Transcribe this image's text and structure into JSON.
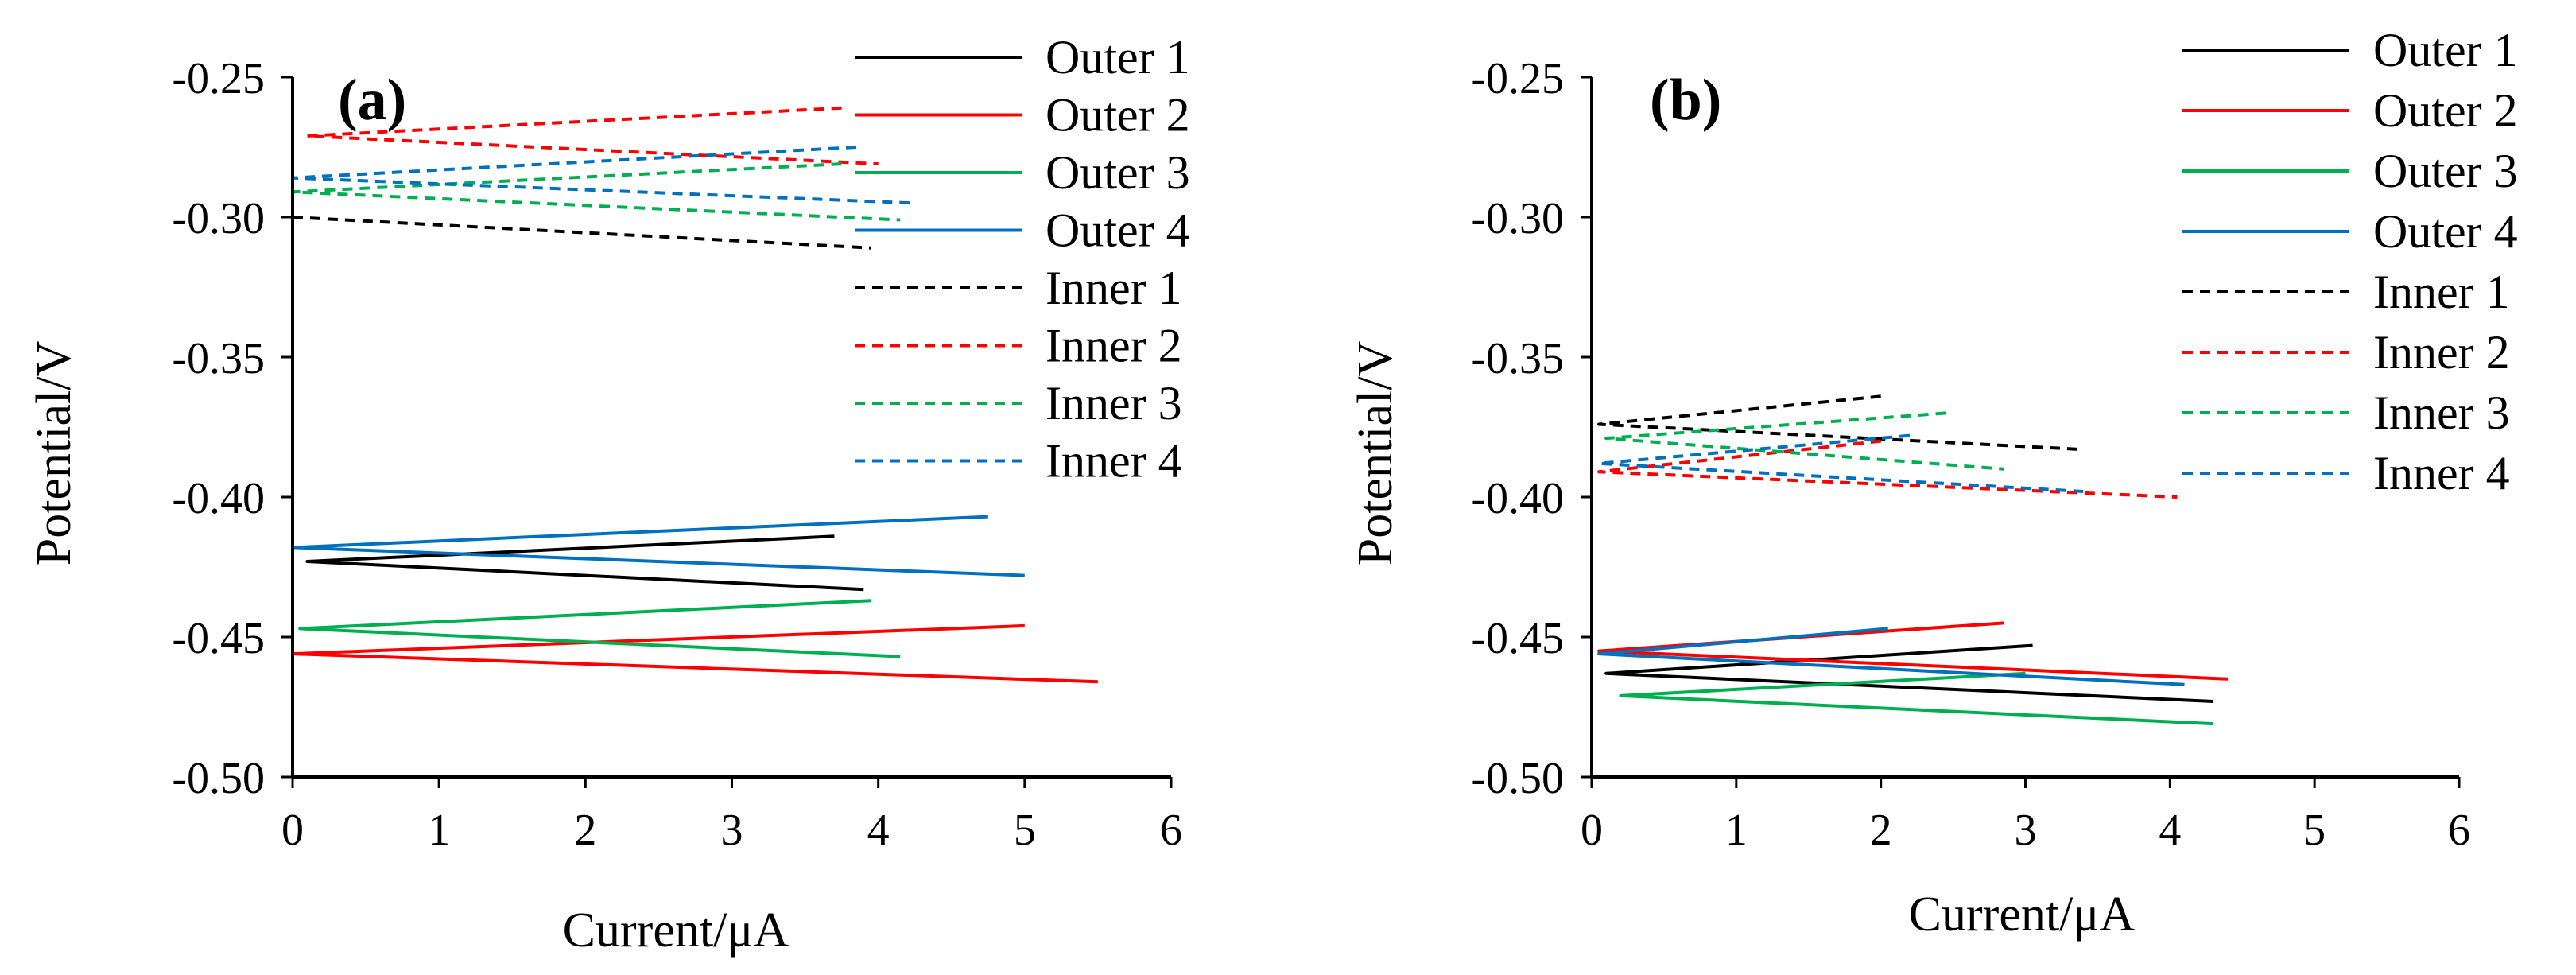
{
  "figure": {
    "panels": [
      {
        "id": "a",
        "label": "(a)",
        "xlabel": "Current/μA",
        "ylabel": "Potential/V",
        "legend_position": "top-right"
      },
      {
        "id": "b",
        "label": "(b)",
        "xlabel": "Current/μA",
        "ylabel": "Potential/V",
        "legend_position": "top-right"
      }
    ]
  },
  "chart_data": [
    {
      "type": "line",
      "panel": "a",
      "title": "(a)",
      "xlabel": "Current/μA",
      "ylabel": "Potential/V",
      "xlim": [
        0,
        6
      ],
      "ylim": [
        -0.5,
        -0.25
      ],
      "xticks": [
        "0",
        "1",
        "2",
        "3",
        "4",
        "5",
        "6"
      ],
      "yticks": [
        "-0.25",
        "-0.30",
        "-0.35",
        "-0.40",
        "-0.45",
        "-0.50"
      ],
      "legend": [
        "Outer 1",
        "Outer 2",
        "Outer 3",
        "Outer 4",
        "Inner 1",
        "Inner 2",
        "Inner 3",
        "Inner 4"
      ],
      "series": [
        {
          "name": "Outer 1",
          "color": "#000000",
          "dash": "solid",
          "x": [
            3.7,
            0.1,
            3.9
          ],
          "y": [
            -0.414,
            -0.423,
            -0.433
          ]
        },
        {
          "name": "Outer 2",
          "color": "#ff0000",
          "dash": "solid",
          "x": [
            5.0,
            0.0,
            5.5
          ],
          "y": [
            -0.446,
            -0.456,
            -0.466
          ]
        },
        {
          "name": "Outer 3",
          "color": "#00b050",
          "dash": "solid",
          "x": [
            3.95,
            0.05,
            4.15
          ],
          "y": [
            -0.437,
            -0.447,
            -0.457
          ]
        },
        {
          "name": "Outer 4",
          "color": "#0070c0",
          "dash": "solid",
          "x": [
            4.75,
            0.0,
            5.0
          ],
          "y": [
            -0.407,
            -0.418,
            -0.428
          ]
        },
        {
          "name": "Inner 1",
          "color": "#000000",
          "dash": "dash",
          "x": [
            0.0,
            3.95
          ],
          "y": [
            -0.3,
            -0.311
          ]
        },
        {
          "name": "Inner 2",
          "color": "#ff0000",
          "dash": "dash",
          "x": [
            3.75,
            0.1,
            4.0
          ],
          "y": [
            -0.261,
            -0.271,
            -0.281
          ]
        },
        {
          "name": "Inner 3",
          "color": "#00b050",
          "dash": "dash",
          "x": [
            3.75,
            0.0,
            4.15
          ],
          "y": [
            -0.281,
            -0.291,
            -0.301
          ]
        },
        {
          "name": "Inner 4",
          "color": "#0070c0",
          "dash": "dash",
          "x": [
            3.85,
            0.0,
            4.25
          ],
          "y": [
            -0.275,
            -0.286,
            -0.295
          ]
        }
      ]
    },
    {
      "type": "line",
      "panel": "b",
      "title": "(b)",
      "xlabel": "Current/μA",
      "ylabel": "Potential/V",
      "xlim": [
        0,
        6
      ],
      "ylim": [
        -0.5,
        -0.25
      ],
      "xticks": [
        "0",
        "1",
        "2",
        "3",
        "4",
        "5",
        "6"
      ],
      "yticks": [
        "-0.25",
        "-0.30",
        "-0.35",
        "-0.40",
        "-0.45",
        "-0.50"
      ],
      "legend": [
        "Outer 1",
        "Outer 2",
        "Outer 3",
        "Outer 4",
        "Inner 1",
        "Inner 2",
        "Inner 3",
        "Inner 4"
      ],
      "series": [
        {
          "name": "Outer 1",
          "color": "#000000",
          "dash": "solid",
          "x": [
            3.05,
            0.1,
            4.3
          ],
          "y": [
            -0.453,
            -0.463,
            -0.473
          ]
        },
        {
          "name": "Outer 2",
          "color": "#ff0000",
          "dash": "solid",
          "x": [
            2.85,
            0.05,
            4.4
          ],
          "y": [
            -0.445,
            -0.455,
            -0.465
          ]
        },
        {
          "name": "Outer 3",
          "color": "#00b050",
          "dash": "solid",
          "x": [
            3.0,
            0.2,
            4.3
          ],
          "y": [
            -0.463,
            -0.471,
            -0.481
          ]
        },
        {
          "name": "Outer 4",
          "color": "#0070c0",
          "dash": "solid",
          "x": [
            2.05,
            0.05,
            4.1
          ],
          "y": [
            -0.447,
            -0.456,
            -0.467
          ]
        },
        {
          "name": "Inner 1",
          "color": "#000000",
          "dash": "dash",
          "x": [
            2.0,
            0.05,
            3.4
          ],
          "y": [
            -0.364,
            -0.374,
            -0.383
          ]
        },
        {
          "name": "Inner 2",
          "color": "#ff0000",
          "dash": "dash",
          "x": [
            2.0,
            0.05,
            4.05
          ],
          "y": [
            -0.38,
            -0.391,
            -0.4
          ]
        },
        {
          "name": "Inner 3",
          "color": "#00b050",
          "dash": "dash",
          "x": [
            2.45,
            0.1,
            2.85
          ],
          "y": [
            -0.37,
            -0.379,
            -0.39
          ]
        },
        {
          "name": "Inner 4",
          "color": "#0070c0",
          "dash": "dash",
          "x": [
            2.2,
            0.05,
            3.4
          ],
          "y": [
            -0.378,
            -0.388,
            -0.398
          ]
        }
      ]
    }
  ]
}
